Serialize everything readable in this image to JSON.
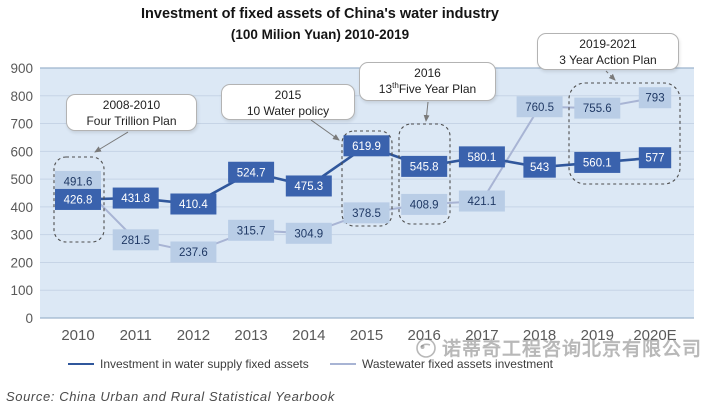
{
  "title": {
    "line1": "Investment of fixed assets of China's water industry",
    "line2": "(100 Milion Yuan) 2010-2019"
  },
  "source": "Source: China Urban and Rural Statistical Yearbook",
  "watermark": {
    "text": "诺蒂奇工程咨询北京有限公司"
  },
  "chart_data": {
    "type": "line",
    "categories": [
      "2010",
      "2011",
      "2012",
      "2013",
      "2014",
      "2015",
      "2016",
      "2017",
      "2018",
      "2019",
      "2020E"
    ],
    "series": [
      {
        "name": "Investment in water supply fixed assets",
        "color": "#30579c",
        "label_bg": "#3a62ad",
        "label_color": "#ffffff",
        "values": [
          426.8,
          431.8,
          410.4,
          524.7,
          475.3,
          619.9,
          545.8,
          580.1,
          543,
          560.1,
          577
        ]
      },
      {
        "name": "Wastewater fixed assets investment",
        "color": "#a8b4d4",
        "label_bg": "#b9cde6",
        "label_color": "#1f3864",
        "values": [
          491.6,
          281.5,
          237.6,
          315.7,
          304.9,
          378.5,
          408.9,
          421.1,
          760.5,
          755.6,
          793
        ]
      }
    ],
    "ylim": [
      0,
      900
    ],
    "ytick_step": 100,
    "grid": true,
    "legend_position": "bottom",
    "plot_bg": "#dce8f5",
    "grid_color": "#c6d4e6",
    "axis_line_color": "#9db4cd",
    "tick_label_color": "#595959",
    "annotations": [
      {
        "id": "four-trillion",
        "line1": "2008-2010",
        "line2": "Four Trillion Plan"
      },
      {
        "id": "water-policy",
        "line1": "2015",
        "line2": "10 Water policy"
      },
      {
        "id": "five-year-plan",
        "line1": "2016",
        "line2_pre": "13",
        "line2_sup": "th",
        "line2_post": "Five Year Plan"
      },
      {
        "id": "action-plan",
        "line1": "2019-2021",
        "line2": "3 Year Action Plan"
      }
    ]
  }
}
